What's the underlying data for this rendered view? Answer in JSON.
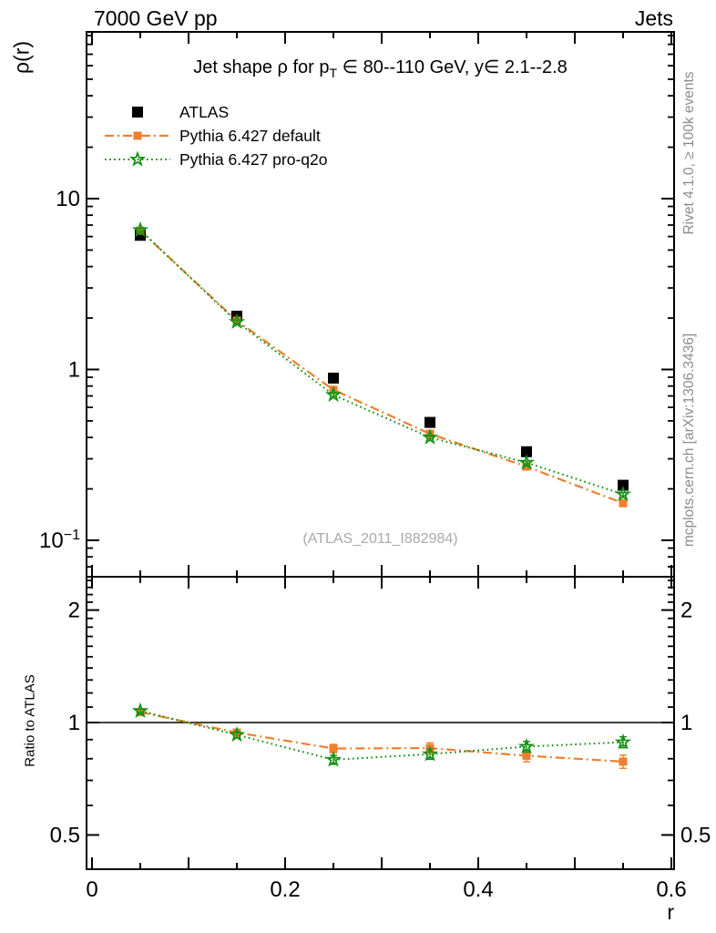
{
  "header": {
    "left": "7000 GeV pp",
    "right": "Jets"
  },
  "title": {
    "pre": "Jet shape ρ for p",
    "sub": "T",
    "post": " ∈ 80--110 GeV, y∈ 2.1--2.8"
  },
  "axis_titles": {
    "y_main": "ρ(r)",
    "y_ratio": "Ratio to ATLAS",
    "x": "r"
  },
  "side_notes": {
    "top": "Rivet 4.1.0, ≥ 100k events",
    "bottom": "mcplots.cern.ch [arXiv:1306.3436]"
  },
  "watermark": "(ATLAS_2011_I882984)",
  "colors": {
    "atlas": "#000000",
    "pythia_default": "#ef7f2e",
    "pythia_proq2o": "#129112",
    "frame": "#000000",
    "reference_line": "#000000",
    "side_note_gray": "#8c8c8c",
    "watermark_gray": "#a9a9a9"
  },
  "legend": {
    "items": [
      {
        "label": "ATLAS"
      },
      {
        "label": "Pythia 6.427 default"
      },
      {
        "label": "Pythia 6.427 pro-q2o"
      }
    ]
  },
  "chart_data": {
    "type": "line",
    "title": "Jet shape ρ for p_T ∈ 80--110 GeV, y∈ 2.1--2.8",
    "xlabel": "r",
    "ylabel": "ρ(r)",
    "ratio_ylabel": "Ratio to ATLAS",
    "x": [
      0.05,
      0.15,
      0.25,
      0.35,
      0.45,
      0.55
    ],
    "series": [
      {
        "name": "ATLAS",
        "marker": "filled-square",
        "msize": 12,
        "color": "#000000",
        "line": null,
        "values": [
          6.1,
          2.05,
          0.89,
          0.49,
          0.33,
          0.21
        ],
        "rel_err": 0.02
      },
      {
        "name": "Pythia 6.427 default",
        "marker": "filled-square",
        "msize": 9,
        "color": "#ef7f2e",
        "line": "dashdot",
        "dash": "10 4 2 4",
        "width": 2.2,
        "values": [
          6.5,
          1.93,
          0.76,
          0.42,
          0.27,
          0.165
        ],
        "rel_err": 0.02,
        "ratio": [
          1.066,
          0.94,
          0.852,
          0.854,
          0.815,
          0.786
        ],
        "ratio_err": [
          0.012,
          0.016,
          0.022,
          0.028,
          0.03,
          0.032
        ]
      },
      {
        "name": "Pythia 6.427 pro-q2o",
        "marker": "open-star",
        "msize": 14,
        "color": "#129112",
        "line": "dotted",
        "dash": "1.7 3.4",
        "width": 2,
        "values": [
          6.55,
          1.9,
          0.71,
          0.4,
          0.285,
          0.186
        ],
        "rel_err": 0.02,
        "ratio": [
          1.074,
          0.927,
          0.795,
          0.823,
          0.862,
          0.886
        ],
        "ratio_err": [
          0.012,
          0.016,
          0.022,
          0.026,
          0.028,
          0.03
        ]
      }
    ],
    "x_axis": {
      "range": [
        0,
        0.6
      ],
      "minor_step": 0.05,
      "labeled_ticks": [
        0,
        0.2,
        0.4,
        0.6
      ],
      "tick_labels": [
        "0",
        "0.2",
        "0.4",
        "0.6"
      ]
    },
    "main_axis": {
      "scale": "log",
      "range": [
        0.061,
        94
      ],
      "labeled_ticks": [
        10,
        1,
        0.1
      ],
      "tick_labels": [
        "10",
        "1",
        "10^{−1}"
      ],
      "minor_ticks": [
        90,
        80,
        70,
        60,
        50,
        40,
        30,
        20,
        9,
        8,
        7,
        6,
        5,
        4,
        3,
        2,
        0.9,
        0.8,
        0.7,
        0.6,
        0.5,
        0.4,
        0.3,
        0.2,
        0.09,
        0.08,
        0.07
      ]
    },
    "ratio_axis": {
      "scale": "log",
      "range": [
        0.405,
        2.45
      ],
      "labeled_ticks": [
        2,
        1,
        0.5
      ],
      "tick_labels": [
        "2",
        "1",
        "0.5"
      ],
      "minor_ticks": [
        2.4,
        2.3,
        2.2,
        2.1,
        1.9,
        1.8,
        1.7,
        1.6,
        1.5,
        1.4,
        1.3,
        1.2,
        1.1,
        0.9,
        0.8,
        0.7,
        0.6
      ],
      "reference_line": 1
    },
    "legend_position": "top-left",
    "grid": false
  }
}
